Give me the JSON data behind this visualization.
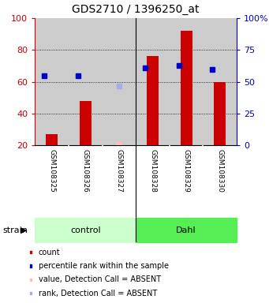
{
  "title": "GDS2710 / 1396250_at",
  "samples": [
    "GSM108325",
    "GSM108326",
    "GSM108327",
    "GSM108328",
    "GSM108329",
    "GSM108330"
  ],
  "count_values": [
    27,
    48,
    null,
    76,
    92,
    60
  ],
  "count_absent_values": [
    null,
    null,
    22,
    null,
    null,
    null
  ],
  "rank_values": [
    55,
    55,
    null,
    61,
    63,
    60
  ],
  "rank_absent_values": [
    null,
    null,
    47,
    null,
    null,
    null
  ],
  "ylim_left": [
    20,
    100
  ],
  "ylim_right": [
    0,
    100
  ],
  "yticks_left": [
    20,
    40,
    60,
    80,
    100
  ],
  "ytick_labels_right": [
    "0",
    "25",
    "50",
    "75",
    "100%"
  ],
  "yticks_right_vals": [
    0,
    25,
    50,
    75,
    100
  ],
  "bar_width": 0.35,
  "bar_color_present": "#cc0000",
  "bar_color_absent": "#ffbbbb",
  "rank_color_present": "#0000cc",
  "rank_color_absent": "#aaaaee",
  "col_bg_color": "#cccccc",
  "plot_bg": "#ffffff",
  "left_axis_color": "#cc0000",
  "right_axis_color": "#0000cc",
  "control_color_light": "#ccffcc",
  "dahl_color": "#55ee55",
  "legend_items": [
    {
      "color": "#cc0000",
      "label": "count"
    },
    {
      "color": "#0000cc",
      "label": "percentile rank within the sample"
    },
    {
      "color": "#ffbbbb",
      "label": "value, Detection Call = ABSENT"
    },
    {
      "color": "#aaaaee",
      "label": "rank, Detection Call = ABSENT"
    }
  ]
}
